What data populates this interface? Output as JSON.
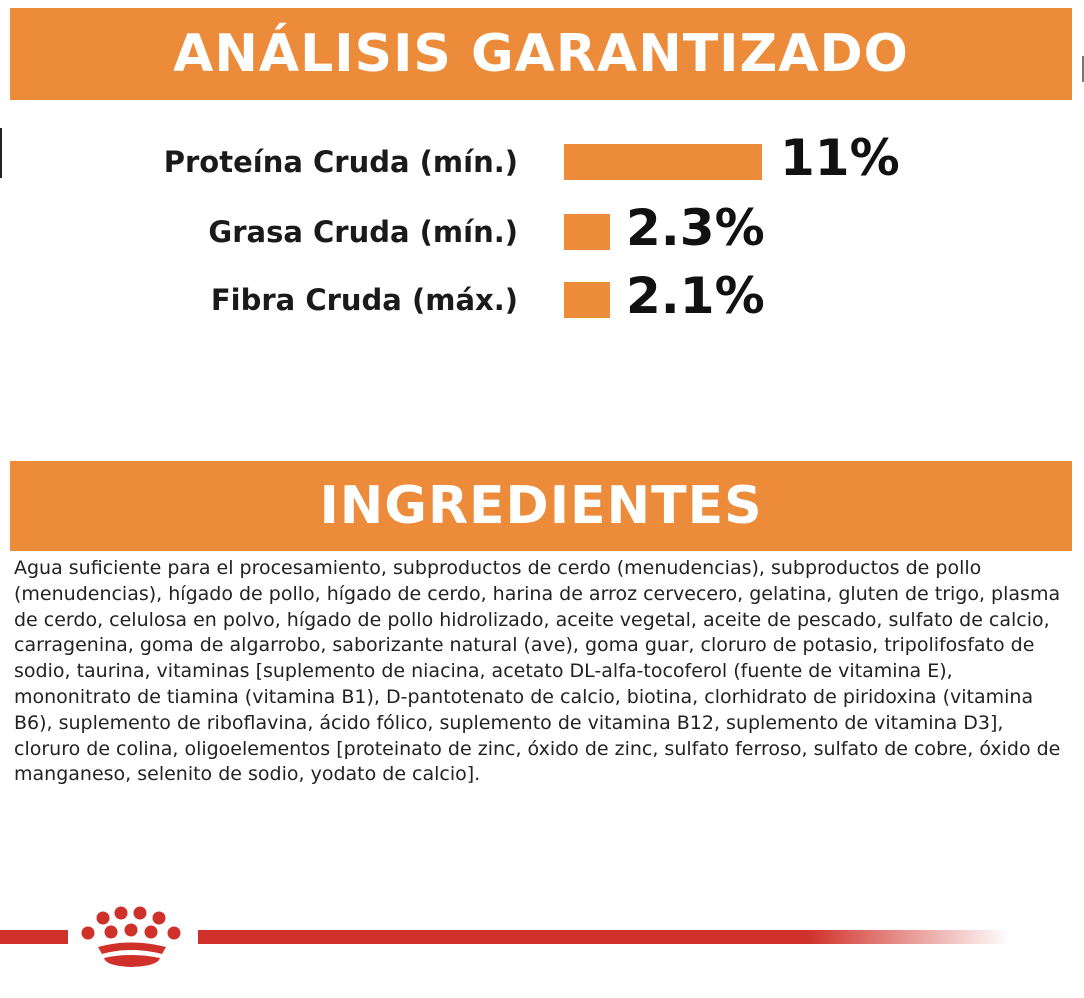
{
  "analysis": {
    "heading": "ANÁLISIS GARANTIZADO",
    "rows": [
      {
        "label": "Proteína Cruda (mín.)",
        "value_text": "11%",
        "value": 11
      },
      {
        "label": "Grasa Cruda (mín.)",
        "value_text": "2.3%",
        "value": 2.3
      },
      {
        "label": "Fibra Cruda (máx.)",
        "value_text": "2.1%",
        "value": 2.1
      }
    ]
  },
  "ingredients": {
    "heading": "INGREDIENTES",
    "text": "Agua suficiente para el procesamiento, subproductos de cerdo (menudencias), subproductos de pollo (menudencias), hígado de pollo, hígado de cerdo, harina de arroz cervecero, gelatina, gluten de trigo, plasma de cerdo, celulosa en polvo, hígado de pollo hidrolizado, aceite vegetal, aceite de pescado, sulfato de calcio, carragenina, goma de algarrobo, saborizante natural (ave), goma guar, cloruro de potasio, tripolifosfato de sodio, taurina, vitaminas [suplemento de niacina, acetato DL-alfa-tocoferol (fuente de vitamina E), mononitrato de tiamina (vitamina B1), D-pantotenato de calcio, biotina, clorhidrato de piridoxina (vitamina B6), suplemento de riboflavina, ácido fólico, suplemento de vitamina B12, suplemento de vitamina D3], cloruro de colina, oligoelementos [proteinato de zinc, óxido de zinc, sulfato ferroso, sulfato de cobre, óxido de manganeso, selenito de sodio, yodato de calcio]."
  },
  "colors": {
    "accent_orange": "#ec8b3a",
    "brand_red": "#d0302a",
    "text_dark": "#1a1a1a"
  },
  "footer": {
    "logo_icon": "crown-logo-icon"
  }
}
